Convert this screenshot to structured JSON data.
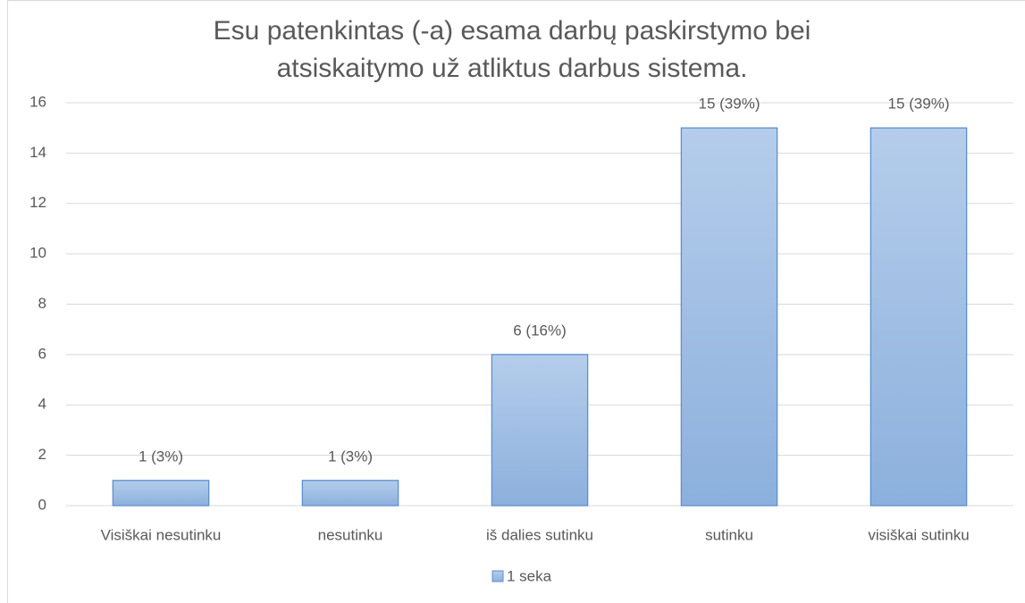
{
  "chart_data": {
    "type": "bar",
    "title": "Esu patenkintas (-a) esama darbų paskirstymo bei atsiskaitymo už atliktus darbus sistema.",
    "categories": [
      "Visiškai nesutinku",
      "nesutinku",
      "iš dalies sutinku",
      "sutinku",
      "visiškai sutinku"
    ],
    "series": [
      {
        "name": "1 seka",
        "color": "#9dbde4",
        "values": [
          1,
          1,
          6,
          15,
          15
        ],
        "value_labels": [
          "1 (3%)",
          "1 (3%)",
          "6 (16%)",
          "15 (39%)",
          "15 (39%)"
        ]
      }
    ],
    "ylim": [
      0,
      16
    ],
    "yticks": [
      0,
      2,
      4,
      6,
      8,
      10,
      12,
      14,
      16
    ],
    "grid": true,
    "legend": "bottom"
  }
}
